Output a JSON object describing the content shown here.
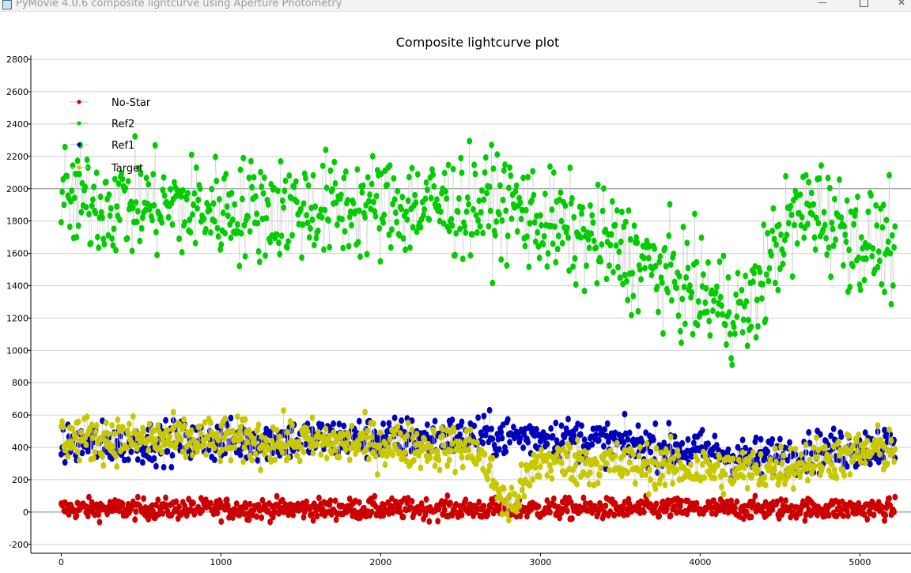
{
  "window": {
    "title": "PyMovie 4.0.6 composite lightcurve using Aperture Photometry",
    "minimize_glyph": "—",
    "close_glyph": "✕",
    "icons": [
      "app-icon",
      "minimize-icon",
      "maximize-icon",
      "close-icon"
    ]
  },
  "chart_data": {
    "type": "scatter",
    "title": "Composite lightcurve plot",
    "xlim": [
      -190,
      5320
    ],
    "ylim": [
      -255,
      2825
    ],
    "x_ticks": [
      0,
      1000,
      2000,
      3000,
      4000,
      5000
    ],
    "y_ticks": [
      -200,
      0,
      200,
      400,
      600,
      800,
      1000,
      1200,
      1400,
      1600,
      1800,
      2000,
      2200,
      2400,
      2600,
      2800
    ],
    "grid": "horizontal",
    "emphasized_gridline": 2000,
    "legend_position": "top-left",
    "n_frames": 5220,
    "series": [
      {
        "name": "No-Star",
        "color": "#cc0000",
        "mean": 20,
        "noise": 45,
        "trend": [
          [
            0,
            20
          ],
          [
            5220,
            20
          ]
        ]
      },
      {
        "name": "Ref2",
        "color": "#00cc00",
        "mean": 1850,
        "noise": 230,
        "trend": [
          [
            0,
            1930
          ],
          [
            1000,
            1870
          ],
          [
            2000,
            1890
          ],
          [
            2800,
            1900
          ],
          [
            3000,
            1800
          ],
          [
            3500,
            1620
          ],
          [
            3800,
            1450
          ],
          [
            4100,
            1300
          ],
          [
            4300,
            1220
          ],
          [
            4500,
            1700
          ],
          [
            4700,
            1900
          ],
          [
            5000,
            1680
          ],
          [
            5200,
            1650
          ]
        ]
      },
      {
        "name": "Ref1",
        "color": "#0000bb",
        "mean": 430,
        "noise": 90,
        "trend": [
          [
            0,
            420
          ],
          [
            2000,
            460
          ],
          [
            3000,
            470
          ],
          [
            4000,
            380
          ],
          [
            4300,
            330
          ],
          [
            5220,
            420
          ]
        ]
      },
      {
        "name": "Target",
        "color": "#c8c800",
        "mean": 400,
        "noise": 100,
        "trend": [
          [
            0,
            460
          ],
          [
            2000,
            420
          ],
          [
            2600,
            390
          ],
          [
            2800,
            20
          ],
          [
            3000,
            320
          ],
          [
            4300,
            250
          ],
          [
            5220,
            400
          ]
        ]
      }
    ]
  }
}
